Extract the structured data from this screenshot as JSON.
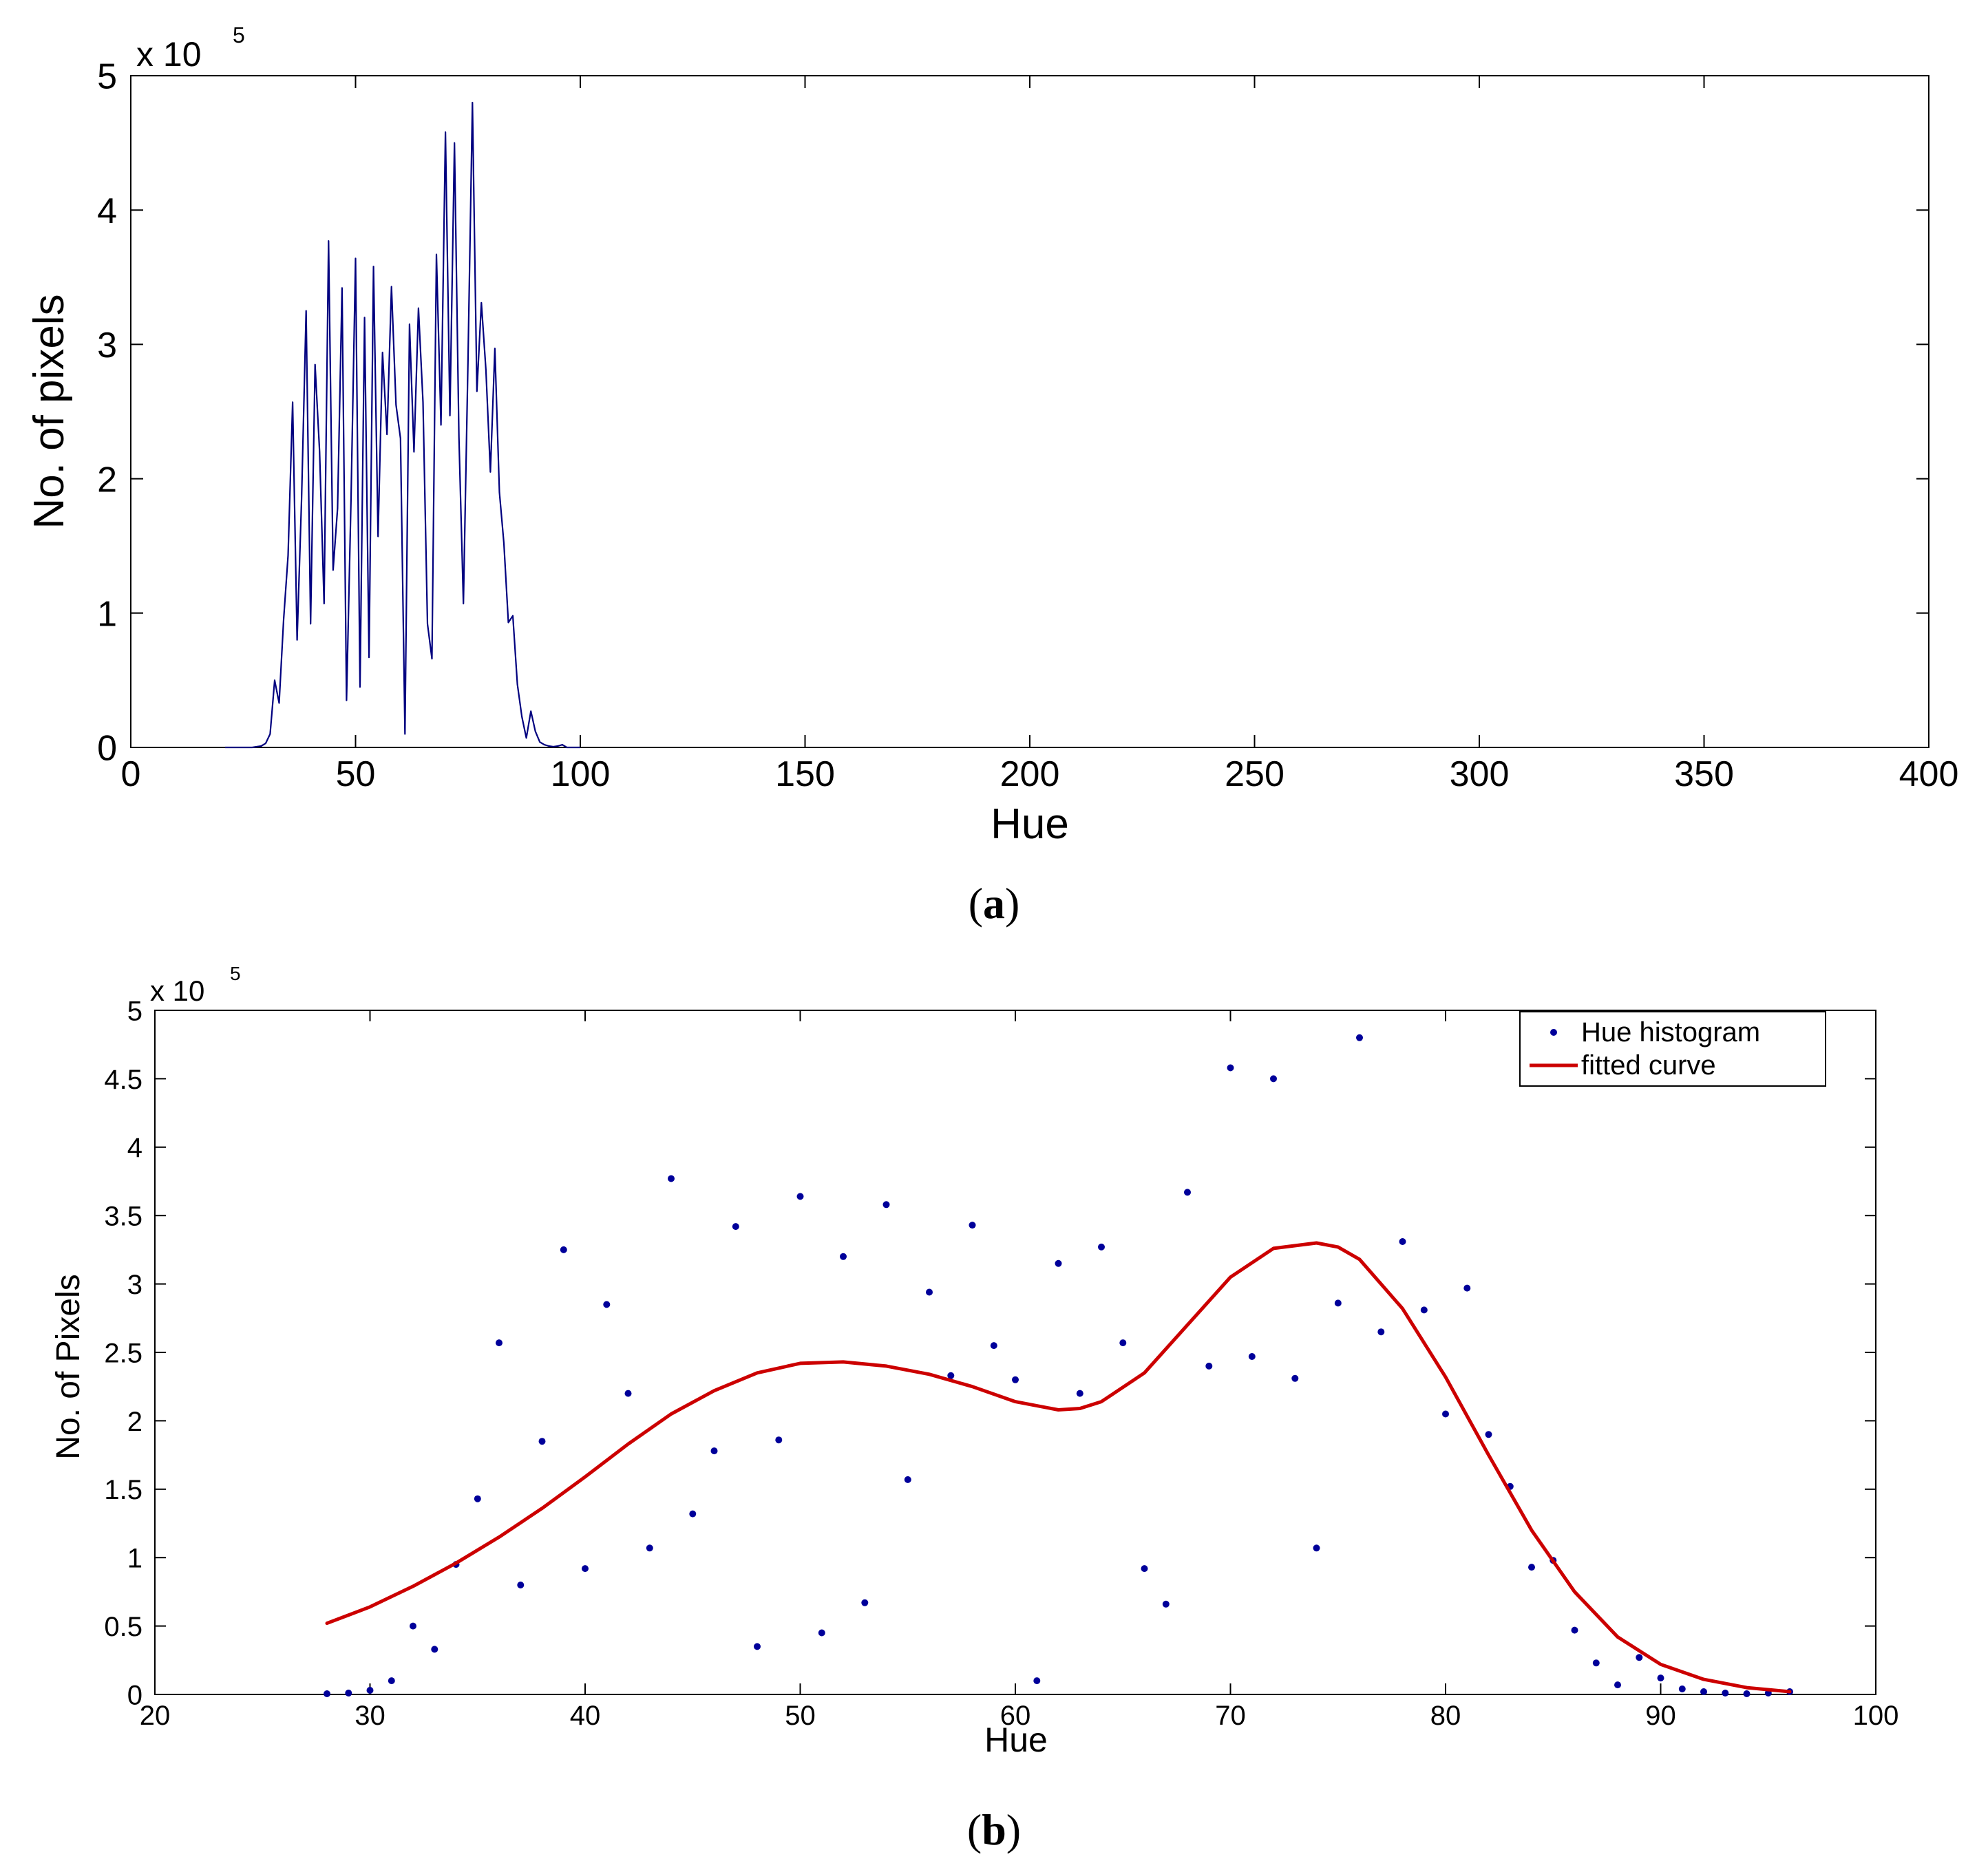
{
  "figure": {
    "caption_a": "(a)",
    "caption_a_letter": "a",
    "caption_b": "(b)",
    "caption_b_letter": "b"
  },
  "colors": {
    "histogram_line": "#00007f",
    "scatter_points": "#00009a",
    "fitted_curve": "#cc0000",
    "axes": "#000000"
  },
  "chart_data": [
    {
      "id": "a",
      "type": "line",
      "title": "",
      "xlabel": "Hue",
      "ylabel": "No. of pixels",
      "xlim": [
        0,
        400
      ],
      "ylim": [
        0,
        500000
      ],
      "exponent_label": "x 10",
      "exponent_power": "5",
      "xticks": [
        0,
        50,
        100,
        150,
        200,
        250,
        300,
        350,
        400
      ],
      "xtick_labels": [
        "0",
        "50",
        "100",
        "150",
        "200",
        "250",
        "300",
        "350",
        "400"
      ],
      "yticks": [
        0,
        100000,
        200000,
        300000,
        400000,
        500000
      ],
      "ytick_labels": [
        "0",
        "1",
        "2",
        "3",
        "4",
        "5"
      ],
      "grid": false,
      "series": [
        {
          "name": "Hue histogram",
          "x": [
            21,
            22,
            23,
            24,
            25,
            26,
            27,
            28,
            29,
            30,
            31,
            32,
            33,
            34,
            35,
            36,
            37,
            38,
            39,
            40,
            41,
            42,
            43,
            44,
            45,
            46,
            47,
            48,
            49,
            50,
            51,
            52,
            53,
            54,
            55,
            56,
            57,
            58,
            59,
            60,
            61,
            62,
            63,
            64,
            65,
            66,
            67,
            68,
            69,
            70,
            71,
            72,
            73,
            74,
            75,
            76,
            77,
            78,
            79,
            80,
            81,
            82,
            83,
            84,
            85,
            86,
            87,
            88,
            89,
            90,
            91,
            92,
            93,
            94,
            95,
            96,
            97,
            98,
            99,
            100
          ],
          "y": [
            0,
            0,
            0,
            0,
            0,
            0,
            0,
            500,
            1000,
            3000,
            10000,
            50000,
            33000,
            95000,
            143000,
            257000,
            80000,
            185000,
            325000,
            92000,
            285000,
            220000,
            107000,
            377000,
            132000,
            178000,
            342000,
            35000,
            186000,
            364000,
            45000,
            320000,
            67000,
            358000,
            157000,
            294000,
            233000,
            343000,
            255000,
            230000,
            10000,
            315000,
            220000,
            327000,
            257000,
            92000,
            66000,
            367000,
            240000,
            458000,
            247000,
            450000,
            231000,
            107000,
            286000,
            480000,
            265000,
            331000,
            281000,
            205000,
            297000,
            190000,
            152000,
            93000,
            98000,
            47000,
            23000,
            7000,
            27000,
            12000,
            4000,
            2000,
            1000,
            500,
            1000,
            2000,
            0,
            0,
            0,
            0
          ]
        }
      ]
    },
    {
      "id": "b",
      "type": "scatter",
      "title": "",
      "xlabel": "Hue",
      "ylabel": "No. of Pixels",
      "xlim": [
        20,
        100
      ],
      "ylim": [
        0,
        500000
      ],
      "exponent_label": "x 10",
      "exponent_power": "5",
      "xticks": [
        20,
        30,
        40,
        50,
        60,
        70,
        80,
        90,
        100
      ],
      "xtick_labels": [
        "20",
        "30",
        "40",
        "50",
        "60",
        "70",
        "80",
        "90",
        "100"
      ],
      "yticks": [
        0,
        50000,
        100000,
        150000,
        200000,
        250000,
        300000,
        350000,
        400000,
        450000,
        500000
      ],
      "ytick_labels": [
        "0",
        "0.5",
        "1",
        "1.5",
        "2",
        "2.5",
        "3",
        "3.5",
        "4",
        "4.5",
        "5"
      ],
      "grid": false,
      "legend_position": "top-right",
      "series": [
        {
          "name": "Hue histogram",
          "kind": "points",
          "x": [
            28,
            29,
            30,
            31,
            32,
            33,
            34,
            35,
            36,
            37,
            38,
            39,
            40,
            41,
            42,
            43,
            44,
            45,
            46,
            47,
            48,
            49,
            50,
            51,
            52,
            53,
            54,
            55,
            56,
            57,
            58,
            59,
            60,
            61,
            62,
            63,
            64,
            65,
            66,
            67,
            68,
            69,
            70,
            71,
            72,
            73,
            74,
            75,
            76,
            77,
            78,
            79,
            80,
            81,
            82,
            83,
            84,
            85,
            86,
            87,
            88,
            89,
            90,
            91,
            92,
            93,
            94,
            95,
            96
          ],
          "y": [
            500,
            1000,
            3000,
            10000,
            50000,
            33000,
            95000,
            143000,
            257000,
            80000,
            185000,
            325000,
            92000,
            285000,
            220000,
            107000,
            377000,
            132000,
            178000,
            342000,
            35000,
            186000,
            364000,
            45000,
            320000,
            67000,
            358000,
            157000,
            294000,
            233000,
            343000,
            255000,
            230000,
            10000,
            315000,
            220000,
            327000,
            257000,
            92000,
            66000,
            367000,
            240000,
            458000,
            247000,
            450000,
            231000,
            107000,
            286000,
            480000,
            265000,
            331000,
            281000,
            205000,
            297000,
            190000,
            152000,
            93000,
            98000,
            47000,
            23000,
            7000,
            27000,
            12000,
            4000,
            2000,
            1000,
            500,
            1000,
            2000
          ]
        },
        {
          "name": "fitted curve",
          "kind": "line",
          "x": [
            28,
            30,
            32,
            34,
            36,
            38,
            40,
            42,
            44,
            46,
            48,
            50,
            52,
            54,
            56,
            58,
            60,
            62,
            63,
            64,
            66,
            68,
            70,
            72,
            74,
            75,
            76,
            78,
            80,
            82,
            84,
            86,
            88,
            90,
            92,
            94,
            96
          ],
          "y": [
            52000,
            64000,
            79000,
            96000,
            115000,
            136000,
            159000,
            183000,
            205000,
            222000,
            235000,
            242000,
            243000,
            240000,
            234000,
            225000,
            214000,
            208000,
            209000,
            214000,
            235000,
            270000,
            305000,
            326000,
            330000,
            327000,
            318000,
            282000,
            232000,
            175000,
            120000,
            75000,
            42000,
            22000,
            11000,
            5000,
            2000
          ]
        }
      ]
    }
  ]
}
